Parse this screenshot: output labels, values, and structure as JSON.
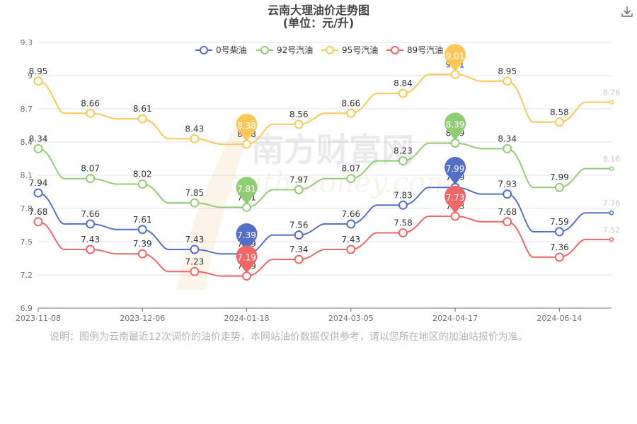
{
  "chart_data": {
    "type": "line",
    "title": "云南大理油价走势图",
    "subtitle": "(单位：元/升)",
    "x": [
      "2023-11-08",
      "",
      "2023-12-06",
      "",
      "2024-01-18",
      "",
      "2024-03-05",
      "",
      "2024-04-17",
      "",
      "2024-06-14",
      ""
    ],
    "xtick_labels": [
      "2023-11-08",
      "2023-12-06",
      "2024-01-18",
      "2024-03-05",
      "2024-04-17",
      "2024-06-14"
    ],
    "ylim": [
      6.9,
      9.3
    ],
    "ytick_labels": [
      "6.9",
      "7.2",
      "7.5",
      "7.8",
      "8.1",
      "8.4",
      "8.7",
      "9",
      "9.3"
    ],
    "grid": true,
    "legend_position": "top",
    "series": [
      {
        "name": "0号柴油",
        "color": "#5470c6",
        "values": [
          7.94,
          7.66,
          7.61,
          7.43,
          7.39,
          7.56,
          7.66,
          7.83,
          7.99,
          7.93,
          7.59,
          7.76
        ],
        "labels": [
          "7.94",
          "7.66",
          "7.61",
          "7.43",
          "7.39",
          "7.56",
          "7.66",
          "7.83",
          "7.99",
          "7.93",
          "7.59",
          "7.76"
        ]
      },
      {
        "name": "92号汽油",
        "color": "#91cc75",
        "values": [
          8.34,
          8.07,
          8.02,
          7.85,
          7.81,
          7.97,
          8.07,
          8.23,
          8.39,
          8.34,
          7.99,
          8.16
        ],
        "labels": [
          "8.34",
          "8.07",
          "8.02",
          "7.85",
          "7.81",
          "7.97",
          "8.07",
          "8.23",
          "8.39",
          "8.34",
          "7.99",
          "8.16"
        ]
      },
      {
        "name": "95号汽油",
        "color": "#fac858",
        "values": [
          8.95,
          8.66,
          8.61,
          8.43,
          8.38,
          8.56,
          8.66,
          8.84,
          9.01,
          8.95,
          8.58,
          8.76
        ],
        "labels": [
          "8.95",
          "8.66",
          "8.61",
          "8.43",
          "8.38",
          "8.56",
          "8.66",
          "8.84",
          "9.01",
          "8.95",
          "8.58",
          "8.76"
        ]
      },
      {
        "name": "89号汽油",
        "color": "#ee6666",
        "values": [
          7.68,
          7.43,
          7.39,
          7.23,
          7.19,
          7.34,
          7.43,
          7.58,
          7.73,
          7.68,
          7.36,
          7.52
        ],
        "labels": [
          "7.68",
          "7.43",
          "7.39",
          "7.23",
          "7.19",
          "7.34",
          "7.43",
          "7.58",
          "7.73",
          "7.68",
          "7.36",
          "7.52"
        ]
      }
    ],
    "markers": [
      {
        "series": 0,
        "index": 4,
        "label": "7.39"
      },
      {
        "series": 0,
        "index": 8,
        "label": "7.99"
      },
      {
        "series": 1,
        "index": 4,
        "label": "7.81"
      },
      {
        "series": 1,
        "index": 8,
        "label": "8.39"
      },
      {
        "series": 2,
        "index": 4,
        "label": "8.38"
      },
      {
        "series": 2,
        "index": 8,
        "label": "9.01"
      },
      {
        "series": 3,
        "index": 4,
        "label": "7.19"
      },
      {
        "series": 3,
        "index": 8,
        "label": "7.73"
      }
    ],
    "watermark": "南方财富网 southmoney.com"
  },
  "note": "说明：图例为云南最近12次调价的油价走势，本网站油价数据仅供参考，请以您所在地区的加油站报价为准。",
  "toolbar": {
    "download_icon": "download-icon"
  }
}
